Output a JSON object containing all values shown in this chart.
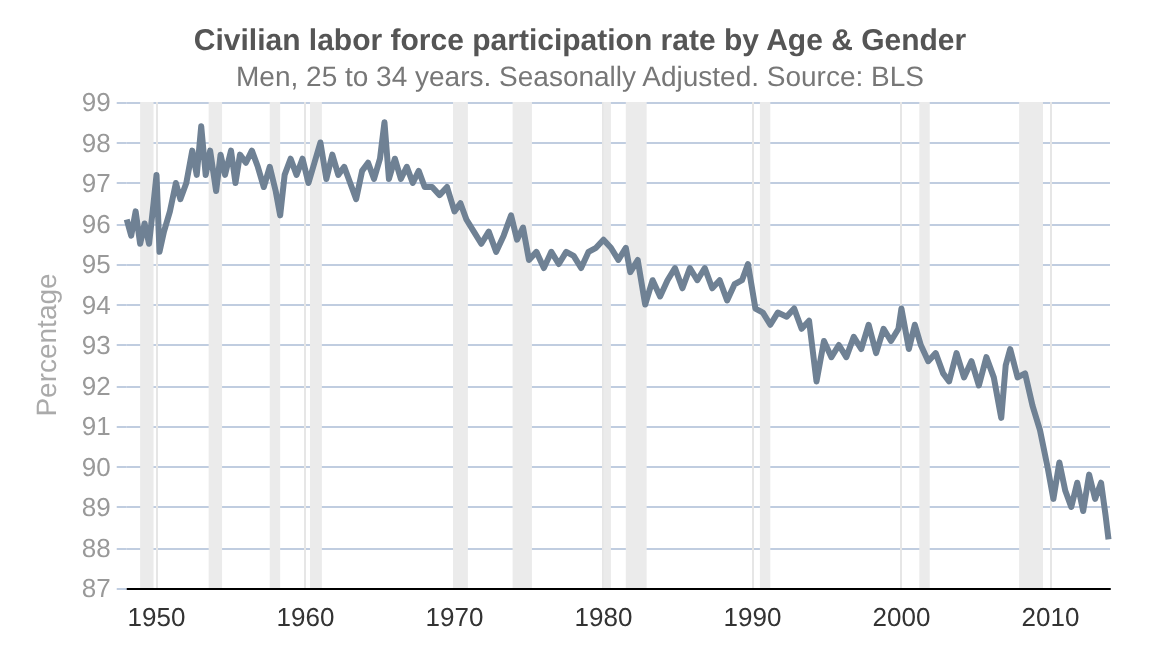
{
  "chart_data": {
    "type": "line",
    "title": "Civilian labor force participation rate by Age & Gender",
    "subtitle": "Men, 25 to 34 years. Seasonally Adjusted. Source: BLS",
    "ylabel": "Percentage",
    "xlim": [
      1948,
      2014
    ],
    "xticks": [
      1950,
      1960,
      1970,
      1980,
      1990,
      2000,
      2010
    ],
    "ylim": [
      87,
      99
    ],
    "yticks": [
      87,
      88,
      89,
      90,
      91,
      92,
      93,
      94,
      95,
      96,
      97,
      98,
      99
    ],
    "grid": true,
    "marker": "none",
    "line_style": "solid",
    "bands": [
      {
        "axis": "x",
        "from": 1948.9,
        "to": 1949.8,
        "color": "#ebebeb"
      },
      {
        "axis": "x",
        "from": 1953.5,
        "to": 1954.4,
        "color": "#ebebeb"
      },
      {
        "axis": "x",
        "from": 1957.6,
        "to": 1958.3,
        "color": "#ebebeb"
      },
      {
        "axis": "x",
        "from": 1960.3,
        "to": 1961.1,
        "color": "#ebebeb"
      },
      {
        "axis": "x",
        "from": 1969.9,
        "to": 1970.9,
        "color": "#ebebeb"
      },
      {
        "axis": "x",
        "from": 1973.9,
        "to": 1975.2,
        "color": "#ebebeb"
      },
      {
        "axis": "x",
        "from": 1980.0,
        "to": 1980.5,
        "color": "#ebebeb"
      },
      {
        "axis": "x",
        "from": 1981.5,
        "to": 1982.9,
        "color": "#ebebeb"
      },
      {
        "axis": "x",
        "from": 1990.5,
        "to": 1991.2,
        "color": "#ebebeb"
      },
      {
        "axis": "x",
        "from": 2001.2,
        "to": 2001.9,
        "color": "#ebebeb"
      },
      {
        "axis": "x",
        "from": 2007.9,
        "to": 2009.5,
        "color": "#ebebeb"
      }
    ],
    "series": [
      {
        "color": "#6f8194",
        "x": [
          1948.0,
          1948.3,
          1948.6,
          1948.9,
          1949.2,
          1949.5,
          1949.8,
          1950.0,
          1950.2,
          1950.5,
          1950.9,
          1951.3,
          1951.6,
          1952.0,
          1952.4,
          1952.7,
          1953.0,
          1953.3,
          1953.6,
          1954.0,
          1954.3,
          1954.6,
          1955.0,
          1955.3,
          1955.6,
          1956.0,
          1956.4,
          1956.8,
          1957.2,
          1957.6,
          1958.0,
          1958.3,
          1958.6,
          1959.0,
          1959.4,
          1959.8,
          1960.2,
          1960.6,
          1961.0,
          1961.4,
          1961.8,
          1962.2,
          1962.6,
          1963.0,
          1963.4,
          1963.8,
          1964.2,
          1964.6,
          1965.0,
          1965.3,
          1965.6,
          1966.0,
          1966.4,
          1966.8,
          1967.2,
          1967.6,
          1968.0,
          1968.5,
          1969.0,
          1969.5,
          1970.0,
          1970.4,
          1970.8,
          1971.3,
          1971.8,
          1972.3,
          1972.8,
          1973.3,
          1973.8,
          1974.2,
          1974.6,
          1975.0,
          1975.5,
          1976.0,
          1976.5,
          1977.0,
          1977.5,
          1978.0,
          1978.5,
          1979.0,
          1979.5,
          1980.0,
          1980.5,
          1981.0,
          1981.5,
          1981.8,
          1982.3,
          1982.8,
          1983.3,
          1983.8,
          1984.3,
          1984.8,
          1985.3,
          1985.8,
          1986.3,
          1986.8,
          1987.3,
          1987.8,
          1988.3,
          1988.8,
          1989.3,
          1989.7,
          1990.2,
          1990.7,
          1991.2,
          1991.7,
          1992.3,
          1992.8,
          1993.3,
          1993.8,
          1994.3,
          1994.8,
          1995.3,
          1995.8,
          1996.3,
          1996.8,
          1997.3,
          1997.8,
          1998.3,
          1998.8,
          1999.3,
          1999.8,
          2000.0,
          2000.5,
          2000.9,
          2001.3,
          2001.8,
          2002.3,
          2002.8,
          2003.2,
          2003.7,
          2004.2,
          2004.7,
          2005.2,
          2005.7,
          2006.2,
          2006.7,
          2007.0,
          2007.3,
          2007.8,
          2008.3,
          2008.8,
          2009.3,
          2009.8,
          2010.2,
          2010.6,
          2011.0,
          2011.4,
          2011.8,
          2012.2,
          2012.6,
          2013.0,
          2013.4,
          2013.7,
          2013.9
        ],
        "values": [
          96.1,
          95.7,
          96.3,
          95.5,
          96.0,
          95.5,
          96.5,
          97.2,
          95.3,
          95.8,
          96.3,
          97.0,
          96.6,
          97.0,
          97.8,
          97.2,
          98.4,
          97.2,
          97.8,
          96.8,
          97.7,
          97.2,
          97.8,
          97.0,
          97.7,
          97.5,
          97.8,
          97.4,
          96.9,
          97.4,
          96.8,
          96.2,
          97.2,
          97.6,
          97.2,
          97.6,
          97.0,
          97.5,
          98.0,
          97.1,
          97.7,
          97.2,
          97.4,
          97.0,
          96.6,
          97.3,
          97.5,
          97.1,
          97.6,
          98.5,
          97.1,
          97.6,
          97.1,
          97.4,
          97.0,
          97.3,
          96.9,
          96.9,
          96.7,
          96.9,
          96.3,
          96.5,
          96.1,
          95.8,
          95.5,
          95.8,
          95.3,
          95.7,
          96.2,
          95.6,
          95.9,
          95.1,
          95.3,
          94.9,
          95.3,
          95.0,
          95.3,
          95.2,
          94.9,
          95.3,
          95.4,
          95.6,
          95.4,
          95.1,
          95.4,
          94.8,
          95.1,
          94.0,
          94.6,
          94.2,
          94.6,
          94.9,
          94.4,
          94.9,
          94.6,
          94.9,
          94.4,
          94.6,
          94.1,
          94.5,
          94.6,
          95.0,
          93.9,
          93.8,
          93.5,
          93.8,
          93.7,
          93.9,
          93.4,
          93.6,
          92.1,
          93.1,
          92.7,
          93.0,
          92.7,
          93.2,
          92.9,
          93.5,
          92.8,
          93.4,
          93.1,
          93.4,
          93.9,
          92.9,
          93.5,
          93.0,
          92.6,
          92.8,
          92.3,
          92.1,
          92.8,
          92.2,
          92.6,
          92.0,
          92.7,
          92.2,
          91.2,
          92.5,
          92.9,
          92.2,
          92.3,
          91.5,
          90.9,
          90.0,
          89.2,
          90.1,
          89.4,
          89.0,
          89.6,
          88.9,
          89.8,
          89.2,
          89.6,
          88.8,
          88.2
        ]
      }
    ]
  }
}
